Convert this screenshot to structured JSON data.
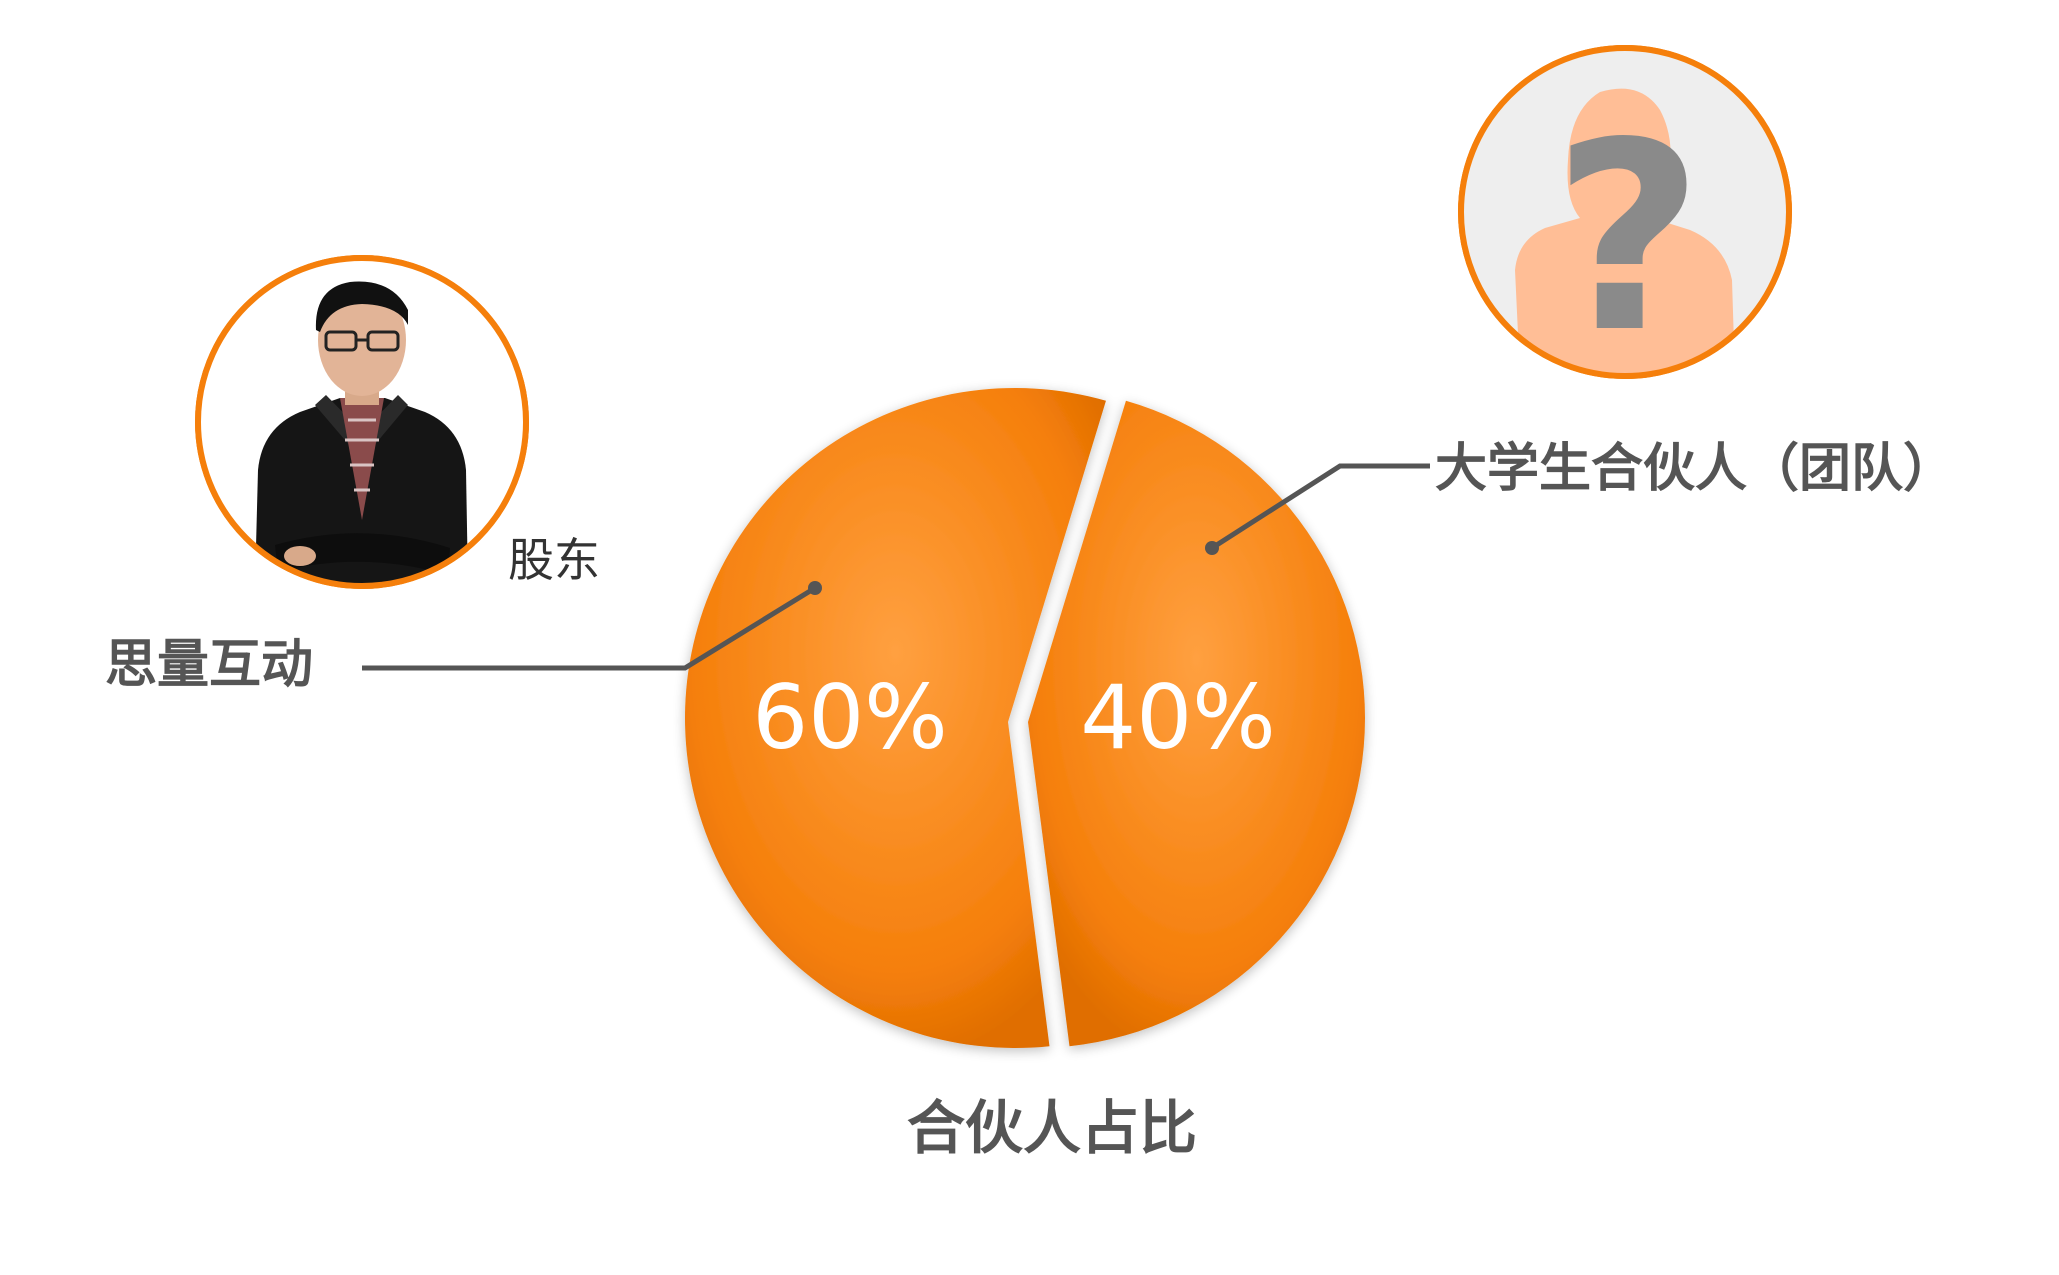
{
  "chart_data": {
    "type": "pie",
    "title": "合伙人占比",
    "slices": [
      {
        "label": "思量互动",
        "value": 60,
        "value_label": "60%",
        "sublabel": "股东"
      },
      {
        "label": "大学生合伙人（团队）",
        "value": 40,
        "value_label": "40%"
      }
    ],
    "colors": {
      "slice": "#F57F0B",
      "slice_dark": "#E06E00",
      "slice_light": "#FFA040",
      "leader": "#555555",
      "label": "#555555",
      "value_text": "#FFFFFF",
      "avatar_ring": "#F57F0B",
      "question_mark": "#8A8A8A",
      "silhouette": "#FFBE96",
      "avatar_bg": "#EEEEEE"
    }
  },
  "avatars": {
    "shareholder_icon": "person-photo",
    "partner_icon": "unknown-person-question"
  }
}
